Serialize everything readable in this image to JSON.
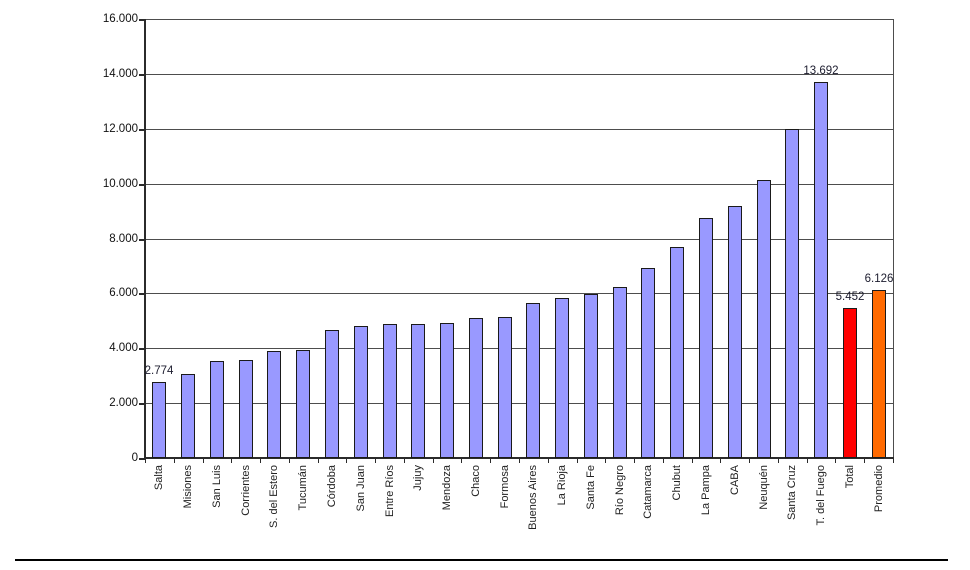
{
  "chart_data": {
    "type": "bar",
    "title": "",
    "xlabel": "",
    "ylabel": "",
    "categories": [
      "Salta",
      "Misiones",
      "San Luis",
      "Corrientes",
      "S. del Estero",
      "Tucumán",
      "Córdoba",
      "San Juan",
      "Entre Ríos",
      "Jujuy",
      "Mendoza",
      "Chaco",
      "Formosa",
      "Buenos Aires",
      "La Rioja",
      "Santa Fe",
      "Río Negro",
      "Catamarca",
      "Chubut",
      "La Pampa",
      "CABA",
      "Neuquén",
      "Santa Cruz",
      "T. del Fuego",
      "Total",
      "Promedio"
    ],
    "values": [
      2774,
      3060,
      3520,
      3560,
      3890,
      3950,
      4680,
      4820,
      4870,
      4900,
      4910,
      5100,
      5150,
      5650,
      5830,
      5980,
      6250,
      6920,
      7680,
      8750,
      9180,
      10150,
      12000,
      13692,
      5452,
      6126
    ],
    "bar_colors": [
      "#9999FF",
      "#9999FF",
      "#9999FF",
      "#9999FF",
      "#9999FF",
      "#9999FF",
      "#9999FF",
      "#9999FF",
      "#9999FF",
      "#9999FF",
      "#9999FF",
      "#9999FF",
      "#9999FF",
      "#9999FF",
      "#9999FF",
      "#9999FF",
      "#9999FF",
      "#9999FF",
      "#9999FF",
      "#9999FF",
      "#9999FF",
      "#9999FF",
      "#9999FF",
      "#9999FF",
      "#FF0000",
      "#FF6A00"
    ],
    "data_labels": [
      "2.774",
      null,
      null,
      null,
      null,
      null,
      null,
      null,
      null,
      null,
      null,
      null,
      null,
      null,
      null,
      null,
      null,
      null,
      null,
      null,
      null,
      null,
      null,
      "13.692",
      "5.452",
      "6.126"
    ],
    "ylim": [
      0,
      16000
    ],
    "ytick_step": 2000,
    "ytick_labels": [
      "0",
      "2.000",
      "4.000",
      "6.000",
      "8.000",
      "10.000",
      "12.000",
      "14.000",
      "16.000"
    ],
    "grid": true,
    "legend": "none",
    "accent_colors": {
      "default_bar": "#9999FF",
      "total_bar": "#FF0000",
      "promedio_bar": "#FF6A00",
      "gridline": "#4d4d4d",
      "axis": "#2b2b2b"
    }
  }
}
